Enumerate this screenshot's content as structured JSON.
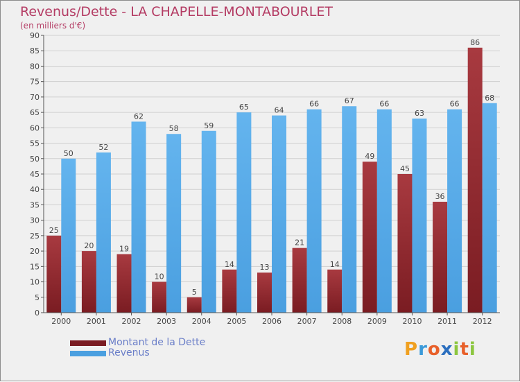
{
  "title": "Revenus/Dette - LA CHAPELLE-MONTABOURLET",
  "subtitle": "(en milliers d'€)",
  "logo": {
    "letters": [
      "P",
      "r",
      "o",
      "x",
      "i",
      "t",
      "i"
    ],
    "colors": [
      "#f0a020",
      "#3a9ad9",
      "#e8602a",
      "#2c6fbf",
      "#8cc63f",
      "#e8602a",
      "#8cc63f"
    ]
  },
  "colors": {
    "debt": "#7a1c22",
    "debt_light": "#a83a40",
    "revenue": "#4a9fe0",
    "revenue_light": "#64b4ee",
    "grid": "#cfcfcf",
    "axis": "#555555",
    "label": "#444444"
  },
  "chart_data": {
    "type": "bar",
    "categories": [
      "2000",
      "2001",
      "2002",
      "2003",
      "2004",
      "2005",
      "2006",
      "2007",
      "2008",
      "2009",
      "2010",
      "2011",
      "2012"
    ],
    "series": [
      {
        "name": "Montant de la Dette",
        "values": [
          25,
          20,
          19,
          10,
          5,
          14,
          13,
          21,
          14,
          49,
          45,
          36,
          86
        ]
      },
      {
        "name": "Revenus",
        "values": [
          50,
          52,
          62,
          58,
          59,
          65,
          64,
          66,
          67,
          66,
          63,
          66,
          68
        ]
      }
    ],
    "title": "Revenus/Dette - LA CHAPELLE-MONTABOURLET",
    "ylabel": "(en milliers d'€)",
    "ylim": [
      0,
      90
    ],
    "yticks": [
      0,
      5,
      10,
      15,
      20,
      25,
      30,
      35,
      40,
      45,
      50,
      55,
      60,
      65,
      70,
      75,
      80,
      85,
      90
    ],
    "grid": true,
    "legend": "bottom-left"
  }
}
